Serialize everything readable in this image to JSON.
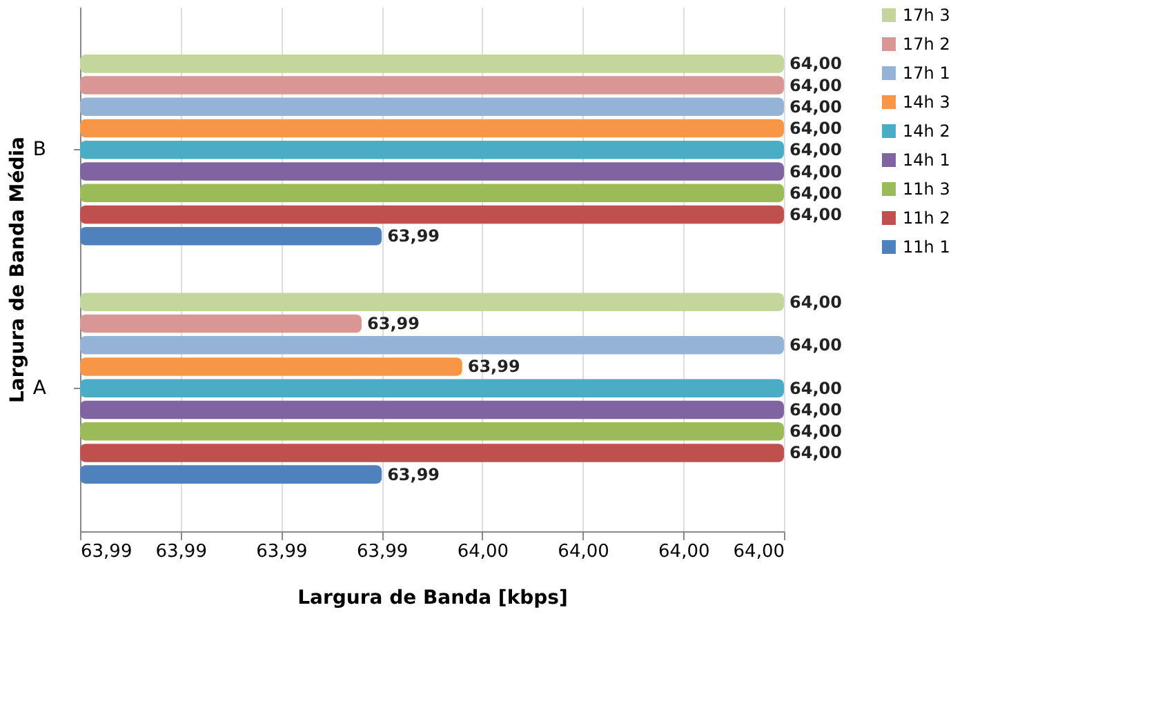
{
  "chart_data": {
    "type": "bar",
    "orientation": "horizontal",
    "xlabel": "Largura de Banda  [kbps]",
    "ylabel": "Largura de Banda Média",
    "categories": [
      "B",
      "A"
    ],
    "series": [
      {
        "name": "11h 1",
        "color": "#4f81bd",
        "values": [
          63.9945,
          63.9945
        ],
        "value_labels": [
          "63,99",
          "63,99"
        ]
      },
      {
        "name": "11h 2",
        "color": "#c0504d",
        "values": [
          63.9965,
          63.9965
        ],
        "value_labels": [
          "64,00",
          "64,00"
        ]
      },
      {
        "name": "11h 3",
        "color": "#9bbb59",
        "values": [
          63.9965,
          63.9965
        ],
        "value_labels": [
          "64,00",
          "64,00"
        ]
      },
      {
        "name": "14h 1",
        "color": "#8064a2",
        "values": [
          63.9965,
          63.9965
        ],
        "value_labels": [
          "64,00",
          "64,00"
        ]
      },
      {
        "name": "14h 2",
        "color": "#4bacc6",
        "values": [
          63.9965,
          63.9965
        ],
        "value_labels": [
          "64,00",
          "64,00"
        ]
      },
      {
        "name": "14h 3",
        "color": "#f79646",
        "values": [
          63.9965,
          63.9949
        ],
        "value_labels": [
          "64,00",
          "63,99"
        ]
      },
      {
        "name": "17h 1",
        "color": "#95b3d7",
        "values": [
          63.9965,
          63.9965
        ],
        "value_labels": [
          "64,00",
          "64,00"
        ]
      },
      {
        "name": "17h 2",
        "color": "#d99694",
        "values": [
          63.9965,
          63.9944
        ],
        "value_labels": [
          "64,00",
          "63,99"
        ]
      },
      {
        "name": "17h 3",
        "color": "#c3d69b",
        "values": [
          63.9965,
          63.9965
        ],
        "value_labels": [
          "64,00",
          "64,00"
        ]
      }
    ],
    "xlim": [
      63.993,
      63.9965
    ],
    "xticks": [
      {
        "value": 63.993,
        "label": "63,99"
      },
      {
        "value": 63.9935,
        "label": "63,99"
      },
      {
        "value": 63.994,
        "label": "63,99"
      },
      {
        "value": 63.9945,
        "label": "63,99"
      },
      {
        "value": 63.995,
        "label": "64,00"
      },
      {
        "value": 63.9955,
        "label": "64,00"
      },
      {
        "value": 63.996,
        "label": "64,00"
      },
      {
        "value": 63.9965,
        "label": "64,00"
      }
    ],
    "grid": "x",
    "legend": "right"
  }
}
